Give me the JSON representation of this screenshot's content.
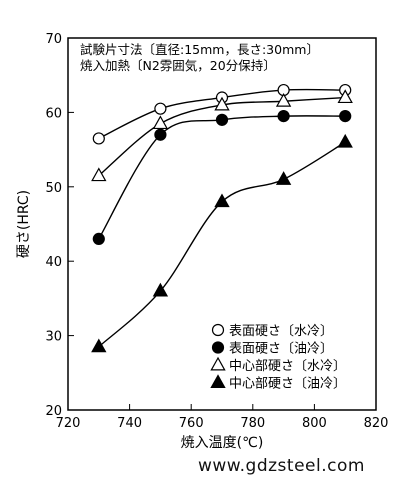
{
  "chart_data": {
    "type": "line",
    "annotation": [
      "試験片寸法〔直径:15mm，長さ:30mm〕",
      "焼入加熱〔N2雰囲気，20分保持〕"
    ],
    "xlabel": "焼入温度(℃)",
    "ylabel": "硬さ(HRC)",
    "xlim": [
      720,
      820
    ],
    "ylim": [
      20,
      70
    ],
    "xticks": [
      720,
      740,
      760,
      780,
      800,
      820
    ],
    "yticks": [
      20,
      30,
      40,
      50,
      60,
      70
    ],
    "x": [
      730,
      750,
      770,
      790,
      810
    ],
    "series": [
      {
        "name": "表面硬さ〔水冷〕",
        "marker": "open-circle",
        "values": [
          56.5,
          60.5,
          62.0,
          63.0,
          63.0
        ]
      },
      {
        "name": "表面硬さ〔油冷〕",
        "marker": "filled-circle",
        "values": [
          43.0,
          57.0,
          59.0,
          59.5,
          59.5
        ]
      },
      {
        "name": "中心部硬さ〔水冷〕",
        "marker": "open-triangle",
        "values": [
          51.5,
          58.5,
          61.0,
          61.5,
          62.0
        ]
      },
      {
        "name": "中心部硬さ〔油冷〕",
        "marker": "filled-triangle",
        "values": [
          28.5,
          36.0,
          48.0,
          51.0,
          56.0
        ]
      }
    ],
    "legend_position": "bottom-right",
    "grid": false
  },
  "watermark": "www.gdzsteel.com"
}
